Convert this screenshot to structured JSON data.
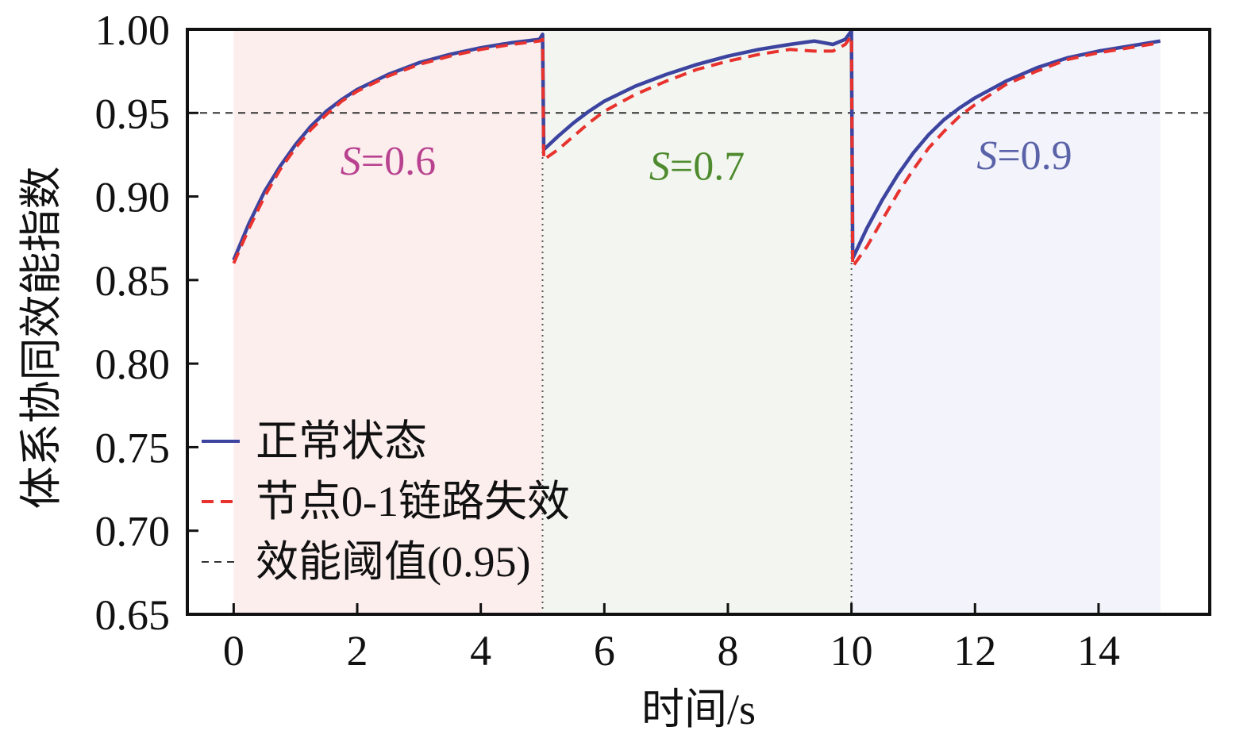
{
  "chart_data": {
    "type": "line",
    "xlabel": "时间/s",
    "ylabel": "体系协同效能指数",
    "xlim": [
      -0.75,
      15.8
    ],
    "ylim": [
      0.65,
      1.0
    ],
    "xticks": [
      0,
      2,
      4,
      6,
      8,
      10,
      12,
      14
    ],
    "xtick_labels": [
      "0",
      "2",
      "4",
      "6",
      "8",
      "10",
      "12",
      "14"
    ],
    "yticks": [
      0.65,
      0.7,
      0.75,
      0.8,
      0.85,
      0.9,
      0.95,
      1.0
    ],
    "ytick_labels": [
      "0.65",
      "0.70",
      "0.75",
      "0.80",
      "0.85",
      "0.90",
      "0.95",
      "1.00"
    ],
    "grid": false,
    "legend_position": "lower-left",
    "threshold": {
      "value": 0.95,
      "label": "效能阈值(0.95)",
      "color": "#333333"
    },
    "phase_boundaries": [
      5,
      10
    ],
    "phases": [
      {
        "x_range": [
          0,
          5
        ],
        "fill": "#fdeeee",
        "annotation": {
          "prefix": "S",
          "text": "=0.6",
          "x": 2.5,
          "y": 0.913,
          "color": "#b8428f"
        }
      },
      {
        "x_range": [
          5,
          10
        ],
        "fill": "#f3f6f0",
        "annotation": {
          "prefix": "S",
          "text": "=0.7",
          "x": 7.5,
          "y": 0.91,
          "color": "#4e8a2e"
        }
      },
      {
        "x_range": [
          10,
          15
        ],
        "fill": "#f2f3fb",
        "annotation": {
          "prefix": "S",
          "text": "=0.9",
          "x": 12.8,
          "y": 0.9165,
          "color": "#5a62a8"
        }
      }
    ],
    "series": [
      {
        "name": "正常状态",
        "color": "#3c44a0",
        "style": "solid",
        "points": [
          [
            0.0,
            0.862
          ],
          [
            0.25,
            0.884
          ],
          [
            0.5,
            0.903
          ],
          [
            0.75,
            0.918
          ],
          [
            1.0,
            0.931
          ],
          [
            1.25,
            0.942
          ],
          [
            1.5,
            0.951
          ],
          [
            1.75,
            0.958
          ],
          [
            2.0,
            0.964
          ],
          [
            2.5,
            0.973
          ],
          [
            3.0,
            0.98
          ],
          [
            3.5,
            0.985
          ],
          [
            4.0,
            0.989
          ],
          [
            4.5,
            0.992
          ],
          [
            4.95,
            0.994
          ],
          [
            5.0,
            0.997
          ],
          [
            5.02,
            0.928
          ],
          [
            5.25,
            0.936
          ],
          [
            5.5,
            0.944
          ],
          [
            5.75,
            0.951
          ],
          [
            6.0,
            0.957
          ],
          [
            6.5,
            0.966
          ],
          [
            7.0,
            0.973
          ],
          [
            7.5,
            0.979
          ],
          [
            8.0,
            0.984
          ],
          [
            8.5,
            0.988
          ],
          [
            9.0,
            0.991
          ],
          [
            9.4,
            0.993
          ],
          [
            9.7,
            0.991
          ],
          [
            9.9,
            0.994
          ],
          [
            10.0,
            0.999
          ],
          [
            10.02,
            0.863
          ],
          [
            10.25,
            0.881
          ],
          [
            10.5,
            0.898
          ],
          [
            10.75,
            0.913
          ],
          [
            11.0,
            0.926
          ],
          [
            11.25,
            0.937
          ],
          [
            11.5,
            0.946
          ],
          [
            11.75,
            0.953
          ],
          [
            12.0,
            0.959
          ],
          [
            12.5,
            0.969
          ],
          [
            13.0,
            0.977
          ],
          [
            13.5,
            0.983
          ],
          [
            14.0,
            0.987
          ],
          [
            14.5,
            0.99
          ],
          [
            15.0,
            0.993
          ]
        ]
      },
      {
        "name": "节点0-1链路失效",
        "color": "#e8322e",
        "style": "dashed",
        "points": [
          [
            0.0,
            0.86
          ],
          [
            0.25,
            0.881
          ],
          [
            0.5,
            0.9
          ],
          [
            0.75,
            0.916
          ],
          [
            1.0,
            0.929
          ],
          [
            1.25,
            0.94
          ],
          [
            1.5,
            0.949
          ],
          [
            1.75,
            0.957
          ],
          [
            2.0,
            0.963
          ],
          [
            2.5,
            0.972
          ],
          [
            3.0,
            0.979
          ],
          [
            3.5,
            0.984
          ],
          [
            4.0,
            0.988
          ],
          [
            4.5,
            0.991
          ],
          [
            4.95,
            0.993
          ],
          [
            5.0,
            0.994
          ],
          [
            5.02,
            0.922
          ],
          [
            5.25,
            0.928
          ],
          [
            5.5,
            0.936
          ],
          [
            5.75,
            0.944
          ],
          [
            6.0,
            0.951
          ],
          [
            6.5,
            0.961
          ],
          [
            7.0,
            0.969
          ],
          [
            7.5,
            0.976
          ],
          [
            8.0,
            0.981
          ],
          [
            8.5,
            0.985
          ],
          [
            9.0,
            0.988
          ],
          [
            9.4,
            0.987
          ],
          [
            9.7,
            0.987
          ],
          [
            9.9,
            0.991
          ],
          [
            10.0,
            0.996
          ],
          [
            10.02,
            0.858
          ],
          [
            10.25,
            0.87
          ],
          [
            10.5,
            0.886
          ],
          [
            10.75,
            0.902
          ],
          [
            11.0,
            0.916
          ],
          [
            11.25,
            0.929
          ],
          [
            11.5,
            0.939
          ],
          [
            11.75,
            0.948
          ],
          [
            12.0,
            0.955
          ],
          [
            12.5,
            0.967
          ],
          [
            13.0,
            0.975
          ],
          [
            13.5,
            0.982
          ],
          [
            14.0,
            0.986
          ],
          [
            14.5,
            0.989
          ],
          [
            15.0,
            0.992
          ]
        ]
      }
    ]
  }
}
